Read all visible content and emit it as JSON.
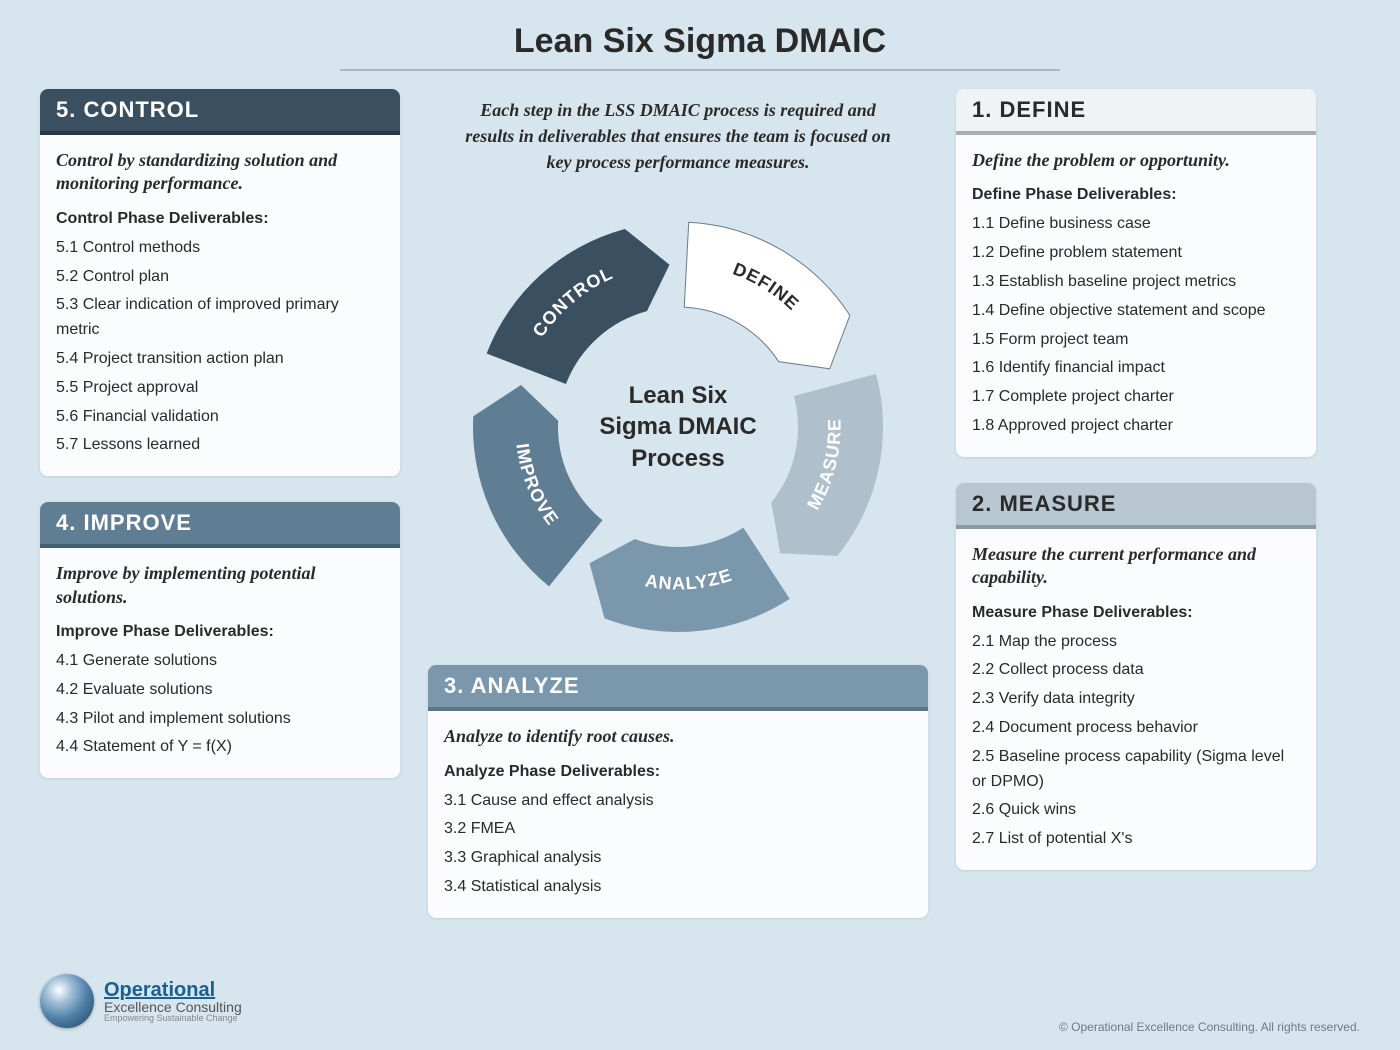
{
  "title": "Lean Six Sigma DMAIC",
  "intro": "Each step in the LSS DMAIC process is required and results in deliverables that ensures the team is focused on key process performance measures.",
  "cycle": {
    "center_line1": "Lean Six",
    "center_line2": "Sigma DMAIC",
    "center_line3": "Process",
    "segments": [
      {
        "label": "DEFINE",
        "color": "#ffffff",
        "text_dark": true
      },
      {
        "label": "MEASURE",
        "color": "#afc0cc",
        "text_dark": false
      },
      {
        "label": "ANALYZE",
        "color": "#7a97ab",
        "text_dark": false
      },
      {
        "label": "IMPROVE",
        "color": "#5f7e94",
        "text_dark": false
      },
      {
        "label": "CONTROL",
        "color": "#3a4f60",
        "text_dark": false
      }
    ]
  },
  "phases": {
    "define": {
      "header": "1.  DEFINE",
      "header_bg": "#f0f3f5",
      "header_dark_text": true,
      "border_color": "#a8b0b6",
      "subtitle": "Define the problem or opportunity.",
      "deliv_title": "Define Phase Deliverables:",
      "items": [
        "1.1  Define business case",
        "1.2  Define problem statement",
        "1.3  Establish baseline project metrics",
        "1.4  Define objective statement and scope",
        "1.5  Form project team",
        "1.6  Identify financial impact",
        "1.7  Complete project charter",
        "1.8  Approved project charter"
      ]
    },
    "measure": {
      "header": "2.  MEASURE",
      "header_bg": "#b8c7d1",
      "header_dark_text": true,
      "border_color": "#8a9aa5",
      "subtitle": "Measure the current performance and capability.",
      "deliv_title": "Measure Phase Deliverables:",
      "items": [
        "2.1  Map the process",
        "2.2  Collect process data",
        "2.3  Verify data integrity",
        "2.4  Document process behavior",
        "2.5  Baseline process capability (Sigma level or DPMO)",
        "2.6  Quick wins",
        "2.7  List of potential X's"
      ]
    },
    "analyze": {
      "header": "3.  ANALYZE",
      "header_bg": "#7a97ab",
      "header_dark_text": false,
      "border_color": "#5a7488",
      "subtitle": "Analyze to identify root causes.",
      "deliv_title": "Analyze Phase Deliverables:",
      "items": [
        "3.1  Cause and effect analysis",
        "3.2  FMEA",
        "3.3  Graphical analysis",
        "3.4  Statistical analysis"
      ]
    },
    "improve": {
      "header": "4.  IMPROVE",
      "header_bg": "#5f7e94",
      "header_dark_text": false,
      "border_color": "#445f72",
      "subtitle": "Improve by implementing potential solutions.",
      "deliv_title": "Improve Phase Deliverables:",
      "items": [
        "4.1  Generate solutions",
        "4.2  Evaluate solutions",
        "4.3  Pilot and implement solutions",
        "4.4  Statement of Y = f(X)"
      ]
    },
    "control": {
      "header": "5.  CONTROL",
      "header_bg": "#3a4f60",
      "header_dark_text": false,
      "border_color": "#2a3a48",
      "subtitle": "Control by standardizing solution and monitoring performance.",
      "deliv_title": "Control Phase Deliverables:",
      "items": [
        "5.1  Control methods",
        "5.2  Control plan",
        "5.3  Clear indication of improved primary metric",
        "5.4  Project transition action plan",
        "5.5  Project approval",
        "5.6  Financial validation",
        "5.7  Lessons learned"
      ]
    }
  },
  "logo": {
    "line1": "Operational",
    "line2": "Excellence Consulting",
    "line3": "Empowering Sustainable Change"
  },
  "copyright": "© Operational Excellence Consulting. All rights reserved."
}
